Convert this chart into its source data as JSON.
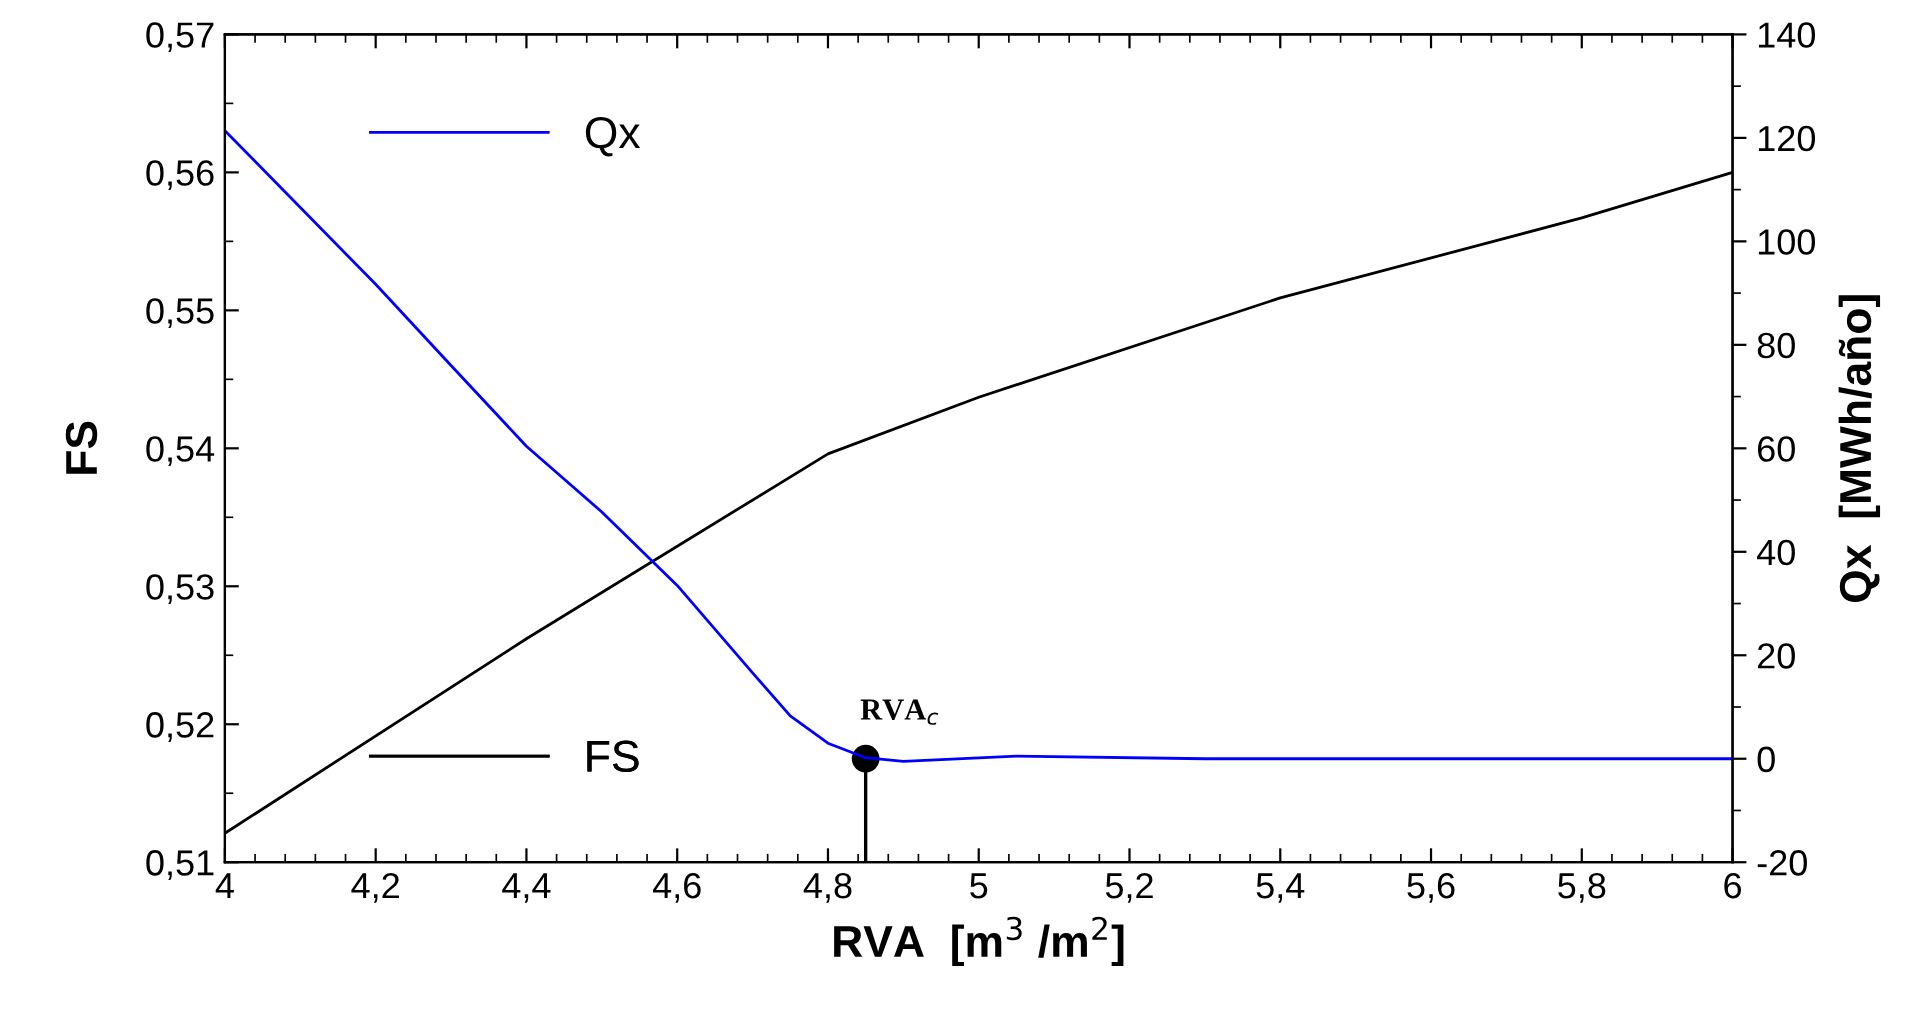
{
  "chart_data": {
    "type": "line",
    "xlabel": "RVA  [m$^{3}$ /m$^{2}$]",
    "ylabel": "FS",
    "y2label": "Qx  [MWh/año]",
    "xlim": [
      4,
      6
    ],
    "xticks": [
      4,
      {
        "value": 4.2,
        "label": "4,2"
      },
      {
        "value": 4.4,
        "label": "4,4"
      },
      {
        "value": 4.6,
        "label": "4,6"
      },
      {
        "value": 4.8,
        "label": "4,8"
      },
      5,
      {
        "value": 5.2,
        "label": "5,2"
      },
      {
        "value": 5.4,
        "label": "5,4"
      },
      {
        "value": 5.6,
        "label": "5,6"
      },
      {
        "value": 5.8,
        "label": "5,8"
      },
      6
    ],
    "ylim": [
      0.51,
      0.57
    ],
    "yticks": [
      {
        "value": 0.51,
        "label": "0,51"
      },
      {
        "value": 0.52,
        "label": "0,52"
      },
      {
        "value": 0.53,
        "label": "0,53"
      },
      {
        "value": 0.54,
        "label": "0,54"
      },
      {
        "value": 0.55,
        "label": "0,55"
      },
      {
        "value": 0.56,
        "label": "0,56"
      },
      {
        "value": 0.57,
        "label": "0,57"
      }
    ],
    "y2lim": [
      -20,
      140
    ],
    "y2ticks": [
      -20,
      0,
      20,
      40,
      60,
      80,
      100,
      120,
      140
    ],
    "legend": "left",
    "grid": false,
    "line_style": "solid",
    "series": [
      {
        "name": "Qx",
        "color": "#0000ff",
        "axis": "y2",
        "x": [
          4,
          4.2,
          4.3,
          4.4,
          4.5,
          4.6,
          4.7,
          4.75,
          4.8,
          4.85,
          4.9,
          5.05,
          5.3,
          6
        ],
        "values": [
          121.4,
          91.7,
          76,
          60.4,
          47.7,
          33.5,
          16.6,
          8.3,
          3.0,
          0.2,
          -0.5,
          0.5,
          0,
          0
        ]
      },
      {
        "name": "FS",
        "color": "#000000",
        "axis": "y",
        "x": [
          4,
          4.4,
          4.8,
          5,
          5.4,
          5.8,
          6
        ],
        "values": [
          0.5121,
          0.5262,
          0.5396,
          0.5437,
          0.5509,
          0.5567,
          0.56
        ]
      },
      {
        "type": "lollipop",
        "color": "#000000",
        "axis": "y",
        "marker": "circle",
        "x": [
          4.85
        ],
        "values": [
          0.5175
        ]
      }
    ],
    "annotations": [
      {
        "text": "RVA$_{c}$",
        "x": 4.85,
        "y": 0.5175
      }
    ]
  }
}
